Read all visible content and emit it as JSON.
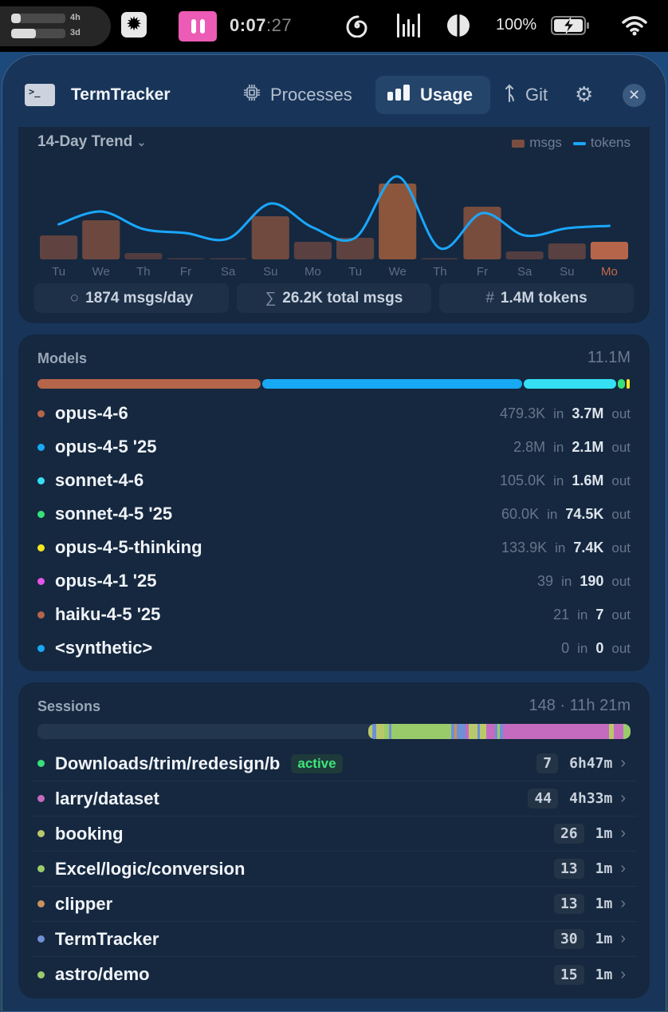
{
  "menubar": {
    "usage_bars": [
      {
        "label": "4h",
        "fill_pct": 18
      },
      {
        "label": "3d",
        "fill_pct": 45
      }
    ],
    "timer": {
      "main": "0:07",
      "seconds": ":27"
    },
    "battery": "100%",
    "icons": [
      "sun-icon",
      "pause-icon",
      "spiral-icon",
      "audio-levels-icon",
      "contrast-icon",
      "battery-charging-icon",
      "wifi-icon"
    ]
  },
  "header": {
    "app_title": "TermTracker",
    "app_icon_glyph": ">_",
    "tabs": [
      {
        "label": "Processes",
        "icon": "cpu-icon",
        "active": false
      },
      {
        "label": "Usage",
        "icon": "bar-chart-icon",
        "active": true
      },
      {
        "label": "Git",
        "icon": "git-branch-icon",
        "active": false
      }
    ],
    "settings_icon": "⚙",
    "close_icon": "✕"
  },
  "trend": {
    "title": "14-Day Trend",
    "legend": {
      "msgs": "msgs",
      "tokens": "tokens"
    },
    "stats": [
      {
        "icon": "○",
        "text": "1874 msgs/day"
      },
      {
        "icon": "∑",
        "text": "26.2K total msgs"
      },
      {
        "icon": "#",
        "text": "1.4M tokens"
      }
    ]
  },
  "chart_data": {
    "type": "bar",
    "title": "14-Day Trend",
    "categories": [
      "Tu",
      "We",
      "Th",
      "Fr",
      "Sa",
      "Su",
      "Mo",
      "Tu",
      "We",
      "Th",
      "Fr",
      "Sa",
      "Su",
      "Mo"
    ],
    "series": [
      {
        "name": "msgs",
        "type": "bar",
        "values": [
          30,
          49,
          8,
          1,
          1,
          54,
          22,
          27,
          95,
          1,
          66,
          10,
          20,
          22
        ]
      },
      {
        "name": "tokens",
        "type": "line",
        "values": [
          44,
          60,
          38,
          33,
          26,
          70,
          40,
          27,
          104,
          14,
          58,
          30,
          39,
          42
        ]
      }
    ],
    "highlight_index": 13,
    "xlabel": "",
    "ylabel": "",
    "grid": false,
    "legend_position": "top-right"
  },
  "models": {
    "title": "Models",
    "total": "11.1M",
    "bar": [
      {
        "color": "#b5654a",
        "pct": 37.6
      },
      {
        "color": "#18a9f5",
        "pct": 43.9
      },
      {
        "color": "#35e0f5",
        "pct": 15.6
      },
      {
        "color": "#37e07a",
        "pct": 1.2
      },
      {
        "color": "#f4e623",
        "pct": 0.5
      }
    ],
    "rows": [
      {
        "name": "opus-4-6",
        "color": "#b5654a",
        "in": "479.3K",
        "out": "3.7M"
      },
      {
        "name": "opus-4-5 '25",
        "color": "#18a9f5",
        "in": "2.8M",
        "out": "2.1M"
      },
      {
        "name": "sonnet-4-6",
        "color": "#35e0f5",
        "in": "105.0K",
        "out": "1.6M"
      },
      {
        "name": "sonnet-4-5 '25",
        "color": "#37e07a",
        "in": "60.0K",
        "out": "74.5K"
      },
      {
        "name": "opus-4-5-thinking",
        "color": "#f4e623",
        "in": "133.9K",
        "out": "7.4K"
      },
      {
        "name": "opus-4-1 '25",
        "color": "#e455e8",
        "in": "39",
        "out": "190"
      },
      {
        "name": "haiku-4-5 '25",
        "color": "#b5654a",
        "in": "21",
        "out": "7"
      },
      {
        "name": "<synthetic>",
        "color": "#18a9f5",
        "in": "0",
        "out": "0"
      }
    ],
    "in_label": "in",
    "out_label": "out"
  },
  "sessions": {
    "title": "Sessions",
    "summary": "148 · 11h 21m",
    "bar_segments": [
      {
        "color": "#b9c96a",
        "w": 5
      },
      {
        "color": "#6f8fd6",
        "w": 4
      },
      {
        "color": "#b9c96a",
        "w": 10
      },
      {
        "color": "#9acb6b",
        "w": 5
      },
      {
        "color": "#6f8fd6",
        "w": 3
      },
      {
        "color": "#9acb6b",
        "w": 70
      },
      {
        "color": "#6f8fd6",
        "w": 4
      },
      {
        "color": "#c9915e",
        "w": 3
      },
      {
        "color": "#6f8fd6",
        "w": 10
      },
      {
        "color": "#c46bbf",
        "w": 4
      },
      {
        "color": "#b9c96a",
        "w": 10
      },
      {
        "color": "#6f8fd6",
        "w": 3
      },
      {
        "color": "#b9c96a",
        "w": 8
      },
      {
        "color": "#c46bbf",
        "w": 10
      },
      {
        "color": "#6f8fd6",
        "w": 3
      },
      {
        "color": "#9acb6b",
        "w": 3
      },
      {
        "color": "#6f8fd6",
        "w": 3
      },
      {
        "color": "#c46bbf",
        "w": 125
      },
      {
        "color": "#b9c96a",
        "w": 5
      },
      {
        "color": "#c46bbf",
        "w": 12
      },
      {
        "color": "#9acb6b",
        "w": 8
      }
    ],
    "rows": [
      {
        "name": "Downloads/trim/redesign/b",
        "color": "#37e07a",
        "badge": "active",
        "count": "7",
        "duration": "6h47m"
      },
      {
        "name": "larry/dataset",
        "color": "#c46bbf",
        "badge": null,
        "count": "44",
        "duration": "4h33m"
      },
      {
        "name": "booking",
        "color": "#b9c96a",
        "badge": null,
        "count": "26",
        "duration": "1m"
      },
      {
        "name": "Excel/logic/conversion",
        "color": "#9acb6b",
        "badge": null,
        "count": "13",
        "duration": "1m"
      },
      {
        "name": "clipper",
        "color": "#c9915e",
        "badge": null,
        "count": "13",
        "duration": "1m"
      },
      {
        "name": "TermTracker",
        "color": "#6f8fd6",
        "badge": null,
        "count": "30",
        "duration": "1m"
      },
      {
        "name": "astro/demo",
        "color": "#9acb6b",
        "badge": null,
        "count": "15",
        "duration": "1m"
      }
    ]
  }
}
